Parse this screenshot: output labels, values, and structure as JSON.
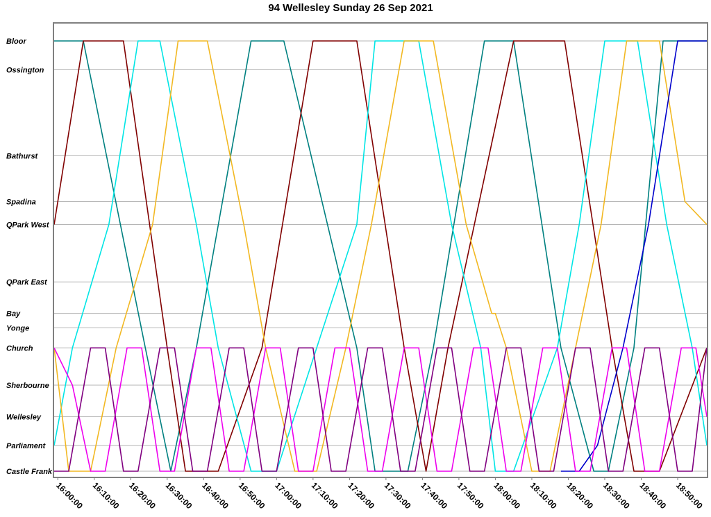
{
  "chart_data": {
    "type": "line",
    "title": "94 Wellesley Sunday 26 Sep 2021",
    "xlabel": "",
    "ylabel": "",
    "x_range": [
      "15:59:00",
      "18:58:00"
    ],
    "x_ticks": [
      "16:00:00",
      "16:10:00",
      "16:20:00",
      "16:30:00",
      "16:40:00",
      "16:50:00",
      "17:00:00",
      "17:10:00",
      "17:20:00",
      "17:30:00",
      "17:40:00",
      "17:50:00",
      "18:00:00",
      "18:10:00",
      "18:20:00",
      "18:30:00",
      "18:40:00",
      "18:50:00"
    ],
    "stops": [
      {
        "name": "Bloor",
        "pos": 7.5
      },
      {
        "name": "Ossington",
        "pos": 7.0
      },
      {
        "name": "Bathurst",
        "pos": 5.5
      },
      {
        "name": "Spadina",
        "pos": 4.7
      },
      {
        "name": "QPark West",
        "pos": 4.3
      },
      {
        "name": "QPark East",
        "pos": 3.3
      },
      {
        "name": "Bay",
        "pos": 2.75
      },
      {
        "name": "Yonge",
        "pos": 2.5
      },
      {
        "name": "Church",
        "pos": 2.15
      },
      {
        "name": "Sherbourne",
        "pos": 1.5
      },
      {
        "name": "Wellesley",
        "pos": 0.95
      },
      {
        "name": "Parliament",
        "pos": 0.45
      },
      {
        "name": "Castle Frank",
        "pos": 0.0
      }
    ],
    "grid": true,
    "series": [
      {
        "color": "#008080",
        "points": [
          [
            "15:59:00",
            "Bloor"
          ],
          [
            "16:07:00",
            "Bloor"
          ],
          [
            "16:24:00",
            "Church"
          ],
          [
            "16:31:00",
            "Castle Frank"
          ],
          [
            "16:38:00",
            "Church"
          ],
          [
            "16:53:00",
            "Bloor"
          ],
          [
            "17:02:00",
            "Bloor"
          ],
          [
            "17:22:00",
            "Church"
          ],
          [
            "17:27:00",
            "Castle Frank"
          ],
          [
            "17:36:00",
            "Castle Frank"
          ],
          [
            "17:43:00",
            "Church"
          ],
          [
            "17:57:00",
            "Bloor"
          ],
          [
            "18:05:00",
            "Bloor"
          ],
          [
            "18:18:00",
            "Church"
          ],
          [
            "18:27:00",
            "Castle Frank"
          ],
          [
            "18:31:00",
            "Castle Frank"
          ],
          [
            "18:38:00",
            "Church"
          ],
          [
            "18:46:00",
            "Bloor"
          ],
          [
            "18:58:00",
            "Bloor"
          ]
        ]
      },
      {
        "color": "#800000",
        "points": [
          [
            "15:59:00",
            "QPark West"
          ],
          [
            "16:07:00",
            "Bloor"
          ],
          [
            "16:18:00",
            "Bloor"
          ],
          [
            "16:30:00",
            "Church"
          ],
          [
            "16:35:00",
            "Castle Frank"
          ],
          [
            "16:44:00",
            "Castle Frank"
          ],
          [
            "16:56:00",
            "Church"
          ],
          [
            "17:10:00",
            "Bloor"
          ],
          [
            "17:22:00",
            "Bloor"
          ],
          [
            "17:35:00",
            "Church"
          ],
          [
            "17:41:00",
            "Castle Frank"
          ],
          [
            "17:47:00",
            "Church"
          ],
          [
            "18:05:00",
            "Bloor"
          ],
          [
            "18:19:00",
            "Bloor"
          ],
          [
            "18:32:00",
            "Church"
          ],
          [
            "18:38:00",
            "Castle Frank"
          ],
          [
            "18:45:00",
            "Castle Frank"
          ],
          [
            "18:58:00",
            "Church"
          ]
        ]
      },
      {
        "color": "#00E5E5",
        "points": [
          [
            "15:59:00",
            "Parliament"
          ],
          [
            "16:04:00",
            "Church"
          ],
          [
            "16:14:00",
            "QPark West"
          ],
          [
            "16:22:00",
            "Bloor"
          ],
          [
            "16:28:00",
            "Bloor"
          ],
          [
            "16:38:00",
            "QPark West"
          ],
          [
            "16:44:00",
            "Church"
          ],
          [
            "16:53:00",
            "Castle Frank"
          ],
          [
            "17:00:00",
            "Castle Frank"
          ],
          [
            "17:11:00",
            "Church"
          ],
          [
            "17:22:00",
            "QPark West"
          ],
          [
            "17:27:00",
            "Bloor"
          ],
          [
            "17:39:00",
            "Bloor"
          ],
          [
            "17:48:00",
            "QPark West"
          ],
          [
            "17:56:00",
            "Church"
          ],
          [
            "18:00:00",
            "Castle Frank"
          ],
          [
            "18:05:00",
            "Castle Frank"
          ],
          [
            "18:17:00",
            "Church"
          ],
          [
            "18:23:00",
            "QPark West"
          ],
          [
            "18:30:00",
            "Bloor"
          ],
          [
            "18:39:00",
            "Bloor"
          ],
          [
            "18:47:00",
            "QPark West"
          ],
          [
            "18:54:00",
            "Church"
          ],
          [
            "18:58:00",
            "Parliament"
          ]
        ]
      },
      {
        "color": "#F2B822",
        "points": [
          [
            "15:59:00",
            "Church"
          ],
          [
            "16:03:00",
            "Castle Frank"
          ],
          [
            "16:09:00",
            "Castle Frank"
          ],
          [
            "16:16:00",
            "Church"
          ],
          [
            "16:26:00",
            "QPark West"
          ],
          [
            "16:33:00",
            "Bloor"
          ],
          [
            "16:41:00",
            "Bloor"
          ],
          [
            "16:51:00",
            "QPark West"
          ],
          [
            "16:57:00",
            "Church"
          ],
          [
            "17:05:00",
            "Castle Frank"
          ],
          [
            "17:11:00",
            "Castle Frank"
          ],
          [
            "17:19:00",
            "Church"
          ],
          [
            "17:26:00",
            "QPark West"
          ],
          [
            "17:35:00",
            "Bloor"
          ],
          [
            "17:43:00",
            "Bloor"
          ],
          [
            "17:52:00",
            "QPark West"
          ],
          [
            "17:59:00",
            "Bay"
          ],
          [
            "18:00:00",
            "Bay"
          ],
          [
            "18:03:00",
            "Church"
          ],
          [
            "18:10:00",
            "Castle Frank"
          ],
          [
            "18:15:00",
            "Castle Frank"
          ],
          [
            "18:22:00",
            "Church"
          ],
          [
            "18:29:00",
            "QPark West"
          ],
          [
            "18:36:00",
            "Bloor"
          ],
          [
            "18:45:00",
            "Bloor"
          ],
          [
            "18:52:00",
            "Spadina"
          ],
          [
            "18:58:00",
            "QPark West"
          ]
        ]
      },
      {
        "color": "#0000CC",
        "points": [
          [
            "18:18:00",
            "Castle Frank"
          ],
          [
            "18:23:00",
            "Castle Frank"
          ],
          [
            "18:28:00",
            "Parliament"
          ],
          [
            "18:35:00",
            "Church"
          ],
          [
            "18:42:00",
            "QPark West"
          ],
          [
            "18:50:00",
            "Bloor"
          ],
          [
            "18:58:00",
            "Bloor"
          ]
        ]
      },
      {
        "color": "#EE00EE",
        "points": [
          [
            "15:59:00",
            "Church"
          ],
          [
            "16:04:00",
            "Sherbourne"
          ],
          [
            "16:09:00",
            "Castle Frank"
          ],
          [
            "16:13:00",
            "Castle Frank"
          ],
          [
            "16:19:00",
            "Church"
          ],
          [
            "16:23:00",
            "Church"
          ],
          [
            "16:28:00",
            "Castle Frank"
          ],
          [
            "16:32:00",
            "Castle Frank"
          ],
          [
            "16:38:00",
            "Church"
          ],
          [
            "16:42:00",
            "Church"
          ],
          [
            "16:47:00",
            "Castle Frank"
          ],
          [
            "16:51:00",
            "Castle Frank"
          ],
          [
            "16:57:00",
            "Church"
          ],
          [
            "17:01:00",
            "Church"
          ],
          [
            "17:06:00",
            "Castle Frank"
          ],
          [
            "17:10:00",
            "Castle Frank"
          ],
          [
            "17:16:00",
            "Church"
          ],
          [
            "17:20:00",
            "Church"
          ],
          [
            "17:25:00",
            "Castle Frank"
          ],
          [
            "17:29:00",
            "Castle Frank"
          ],
          [
            "17:35:00",
            "Church"
          ],
          [
            "17:39:00",
            "Church"
          ],
          [
            "17:44:00",
            "Castle Frank"
          ],
          [
            "17:48:00",
            "Castle Frank"
          ],
          [
            "17:54:00",
            "Church"
          ],
          [
            "17:58:00",
            "Church"
          ],
          [
            "18:03:00",
            "Castle Frank"
          ],
          [
            "18:07:00",
            "Castle Frank"
          ],
          [
            "18:13:00",
            "Church"
          ],
          [
            "18:17:00",
            "Church"
          ],
          [
            "18:22:00",
            "Castle Frank"
          ],
          [
            "18:26:00",
            "Castle Frank"
          ],
          [
            "18:32:00",
            "Church"
          ],
          [
            "18:36:00",
            "Church"
          ],
          [
            "18:41:00",
            "Castle Frank"
          ],
          [
            "18:45:00",
            "Castle Frank"
          ],
          [
            "18:51:00",
            "Church"
          ],
          [
            "18:55:00",
            "Church"
          ],
          [
            "18:58:00",
            "Wellesley"
          ]
        ]
      },
      {
        "color": "#800080",
        "points": [
          [
            "15:59:00",
            "Castle Frank"
          ],
          [
            "16:03:00",
            "Castle Frank"
          ],
          [
            "16:09:00",
            "Church"
          ],
          [
            "16:13:00",
            "Church"
          ],
          [
            "16:18:00",
            "Castle Frank"
          ],
          [
            "16:22:00",
            "Castle Frank"
          ],
          [
            "16:28:00",
            "Church"
          ],
          [
            "16:32:00",
            "Church"
          ],
          [
            "16:37:00",
            "Castle Frank"
          ],
          [
            "16:41:00",
            "Castle Frank"
          ],
          [
            "16:47:00",
            "Church"
          ],
          [
            "16:51:00",
            "Church"
          ],
          [
            "16:56:00",
            "Castle Frank"
          ],
          [
            "17:00:00",
            "Castle Frank"
          ],
          [
            "17:06:00",
            "Church"
          ],
          [
            "17:10:00",
            "Church"
          ],
          [
            "17:15:00",
            "Castle Frank"
          ],
          [
            "17:19:00",
            "Castle Frank"
          ],
          [
            "17:25:00",
            "Church"
          ],
          [
            "17:29:00",
            "Church"
          ],
          [
            "17:34:00",
            "Castle Frank"
          ],
          [
            "17:38:00",
            "Castle Frank"
          ],
          [
            "17:44:00",
            "Church"
          ],
          [
            "17:48:00",
            "Church"
          ],
          [
            "17:53:00",
            "Castle Frank"
          ],
          [
            "17:57:00",
            "Castle Frank"
          ],
          [
            "18:03:00",
            "Church"
          ],
          [
            "18:07:00",
            "Church"
          ],
          [
            "18:12:00",
            "Castle Frank"
          ],
          [
            "18:16:00",
            "Castle Frank"
          ],
          [
            "18:22:00",
            "Church"
          ],
          [
            "18:26:00",
            "Church"
          ],
          [
            "18:31:00",
            "Castle Frank"
          ],
          [
            "18:35:00",
            "Castle Frank"
          ],
          [
            "18:41:00",
            "Church"
          ],
          [
            "18:45:00",
            "Church"
          ],
          [
            "18:50:00",
            "Castle Frank"
          ],
          [
            "18:54:00",
            "Castle Frank"
          ],
          [
            "18:58:00",
            "Church"
          ]
        ]
      }
    ]
  }
}
